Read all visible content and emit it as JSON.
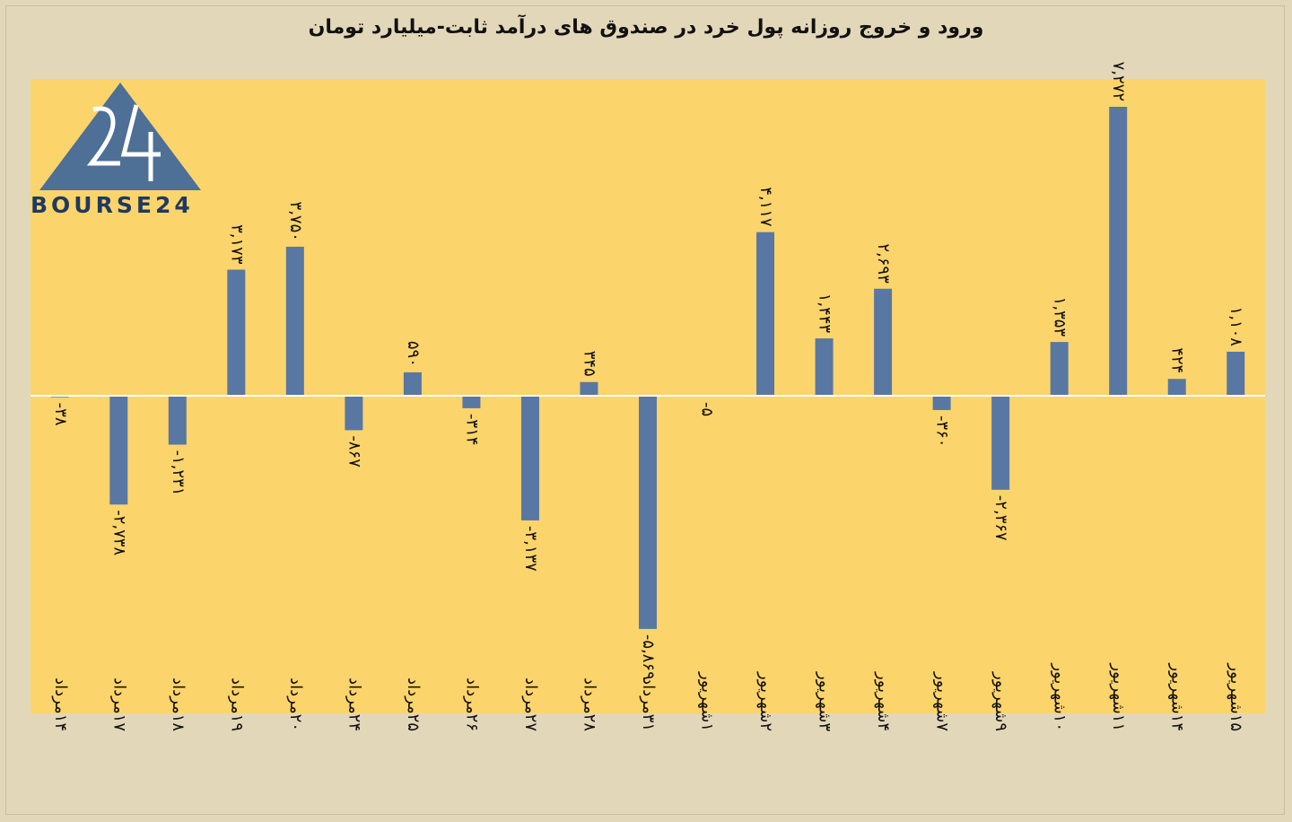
{
  "chart_data": {
    "type": "bar",
    "title": "ورود و خروج روزانه پول خرد در صندوق های درآمد ثابت-میلیارد تومان",
    "categories": [
      "۱۴مرداد",
      "۱۷مرداد",
      "۱۸مرداد",
      "۱۹مرداد",
      "۲۰مرداد",
      "۲۴مرداد",
      "۲۵مرداد",
      "۲۶مرداد",
      "۲۷مرداد",
      "۲۸مرداد",
      "۳۱مرداد",
      "۱شهریور",
      "۲شهریور",
      "۳شهریور",
      "۴شهریور",
      "۷شهریور",
      "۹شهریور",
      "۱۰شهریور",
      "۱۱شهریور",
      "۱۴شهریور",
      "۱۵شهریور"
    ],
    "values": [
      -38,
      -2738,
      -1231,
      3173,
      3750,
      -867,
      590,
      -314,
      -3137,
      345,
      -5869,
      -5,
      4117,
      1443,
      2693,
      -360,
      -2367,
      1353,
      7272,
      424,
      1108
    ],
    "value_labels": [
      "-۳۸",
      "-۲,۷۳۸",
      "-۱,۲۳۱",
      "۳,۱۷۳",
      "۳,۷۵۰",
      "-۸۶۷",
      "۵۹۰",
      "-۳۱۴",
      "-۳,۱۳۷",
      "۳۴۵",
      "-۵,۸۶۹",
      "-۵",
      "۴,۱۱۷",
      "۱,۴۴۳",
      "۲,۶۹۳",
      "-۳۶۰",
      "-۲,۳۶۷",
      "۱,۳۵۳",
      "۷,۲۷۲",
      "۴۲۴",
      "۱,۱۰۸"
    ],
    "bar_color": "#5878a3",
    "plot_background": "#fcd46c",
    "page_background": "#e2d7b8",
    "grid": false,
    "legend": "none"
  },
  "logo": {
    "text": "BOURSE24",
    "color": "#4e6f96"
  }
}
